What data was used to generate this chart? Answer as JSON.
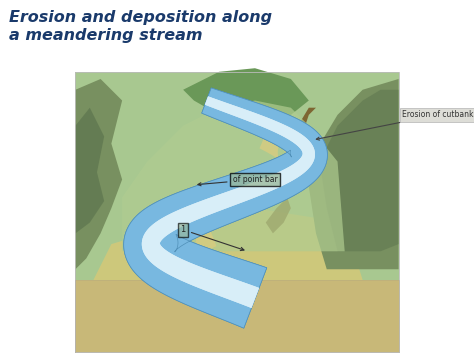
{
  "title_line1": "Erosion and deposition along",
  "title_line2": "a meandering stream",
  "title_color": "#1a3a6b",
  "title_fontsize": 11.5,
  "title_style": "italic",
  "title_weight": "bold",
  "bg_color": "#ffffff",
  "label1_text": "Erosion of cutbank",
  "label2_text": "of point bar",
  "label3_text": "1",
  "terrain_green_mid": "#9dc98a",
  "terrain_green_dark": "#6a9e5a",
  "terrain_green_light": "#b8d8a0",
  "rocky_brown": "#8b7040",
  "sand_tan": "#c8b878",
  "sand_light": "#ddd090",
  "water_blue": "#a8d4f0",
  "water_light": "#d8eef8",
  "water_dark": "#78aacc",
  "soil_tan": "#c8b878",
  "soil_dark": "#b09050"
}
